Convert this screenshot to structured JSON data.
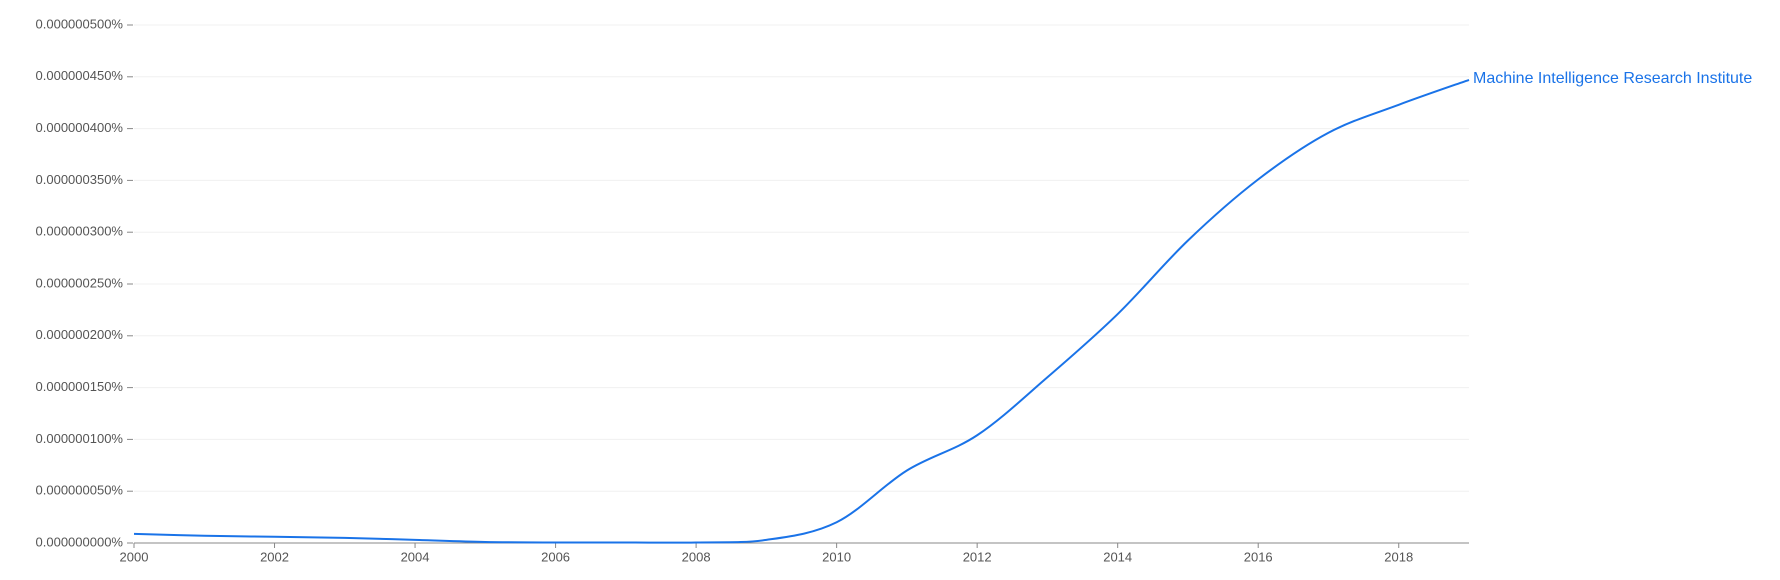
{
  "chart_data": {
    "type": "line",
    "x": [
      2000,
      2001,
      2002,
      2003,
      2004,
      2005,
      2006,
      2007,
      2008,
      2009,
      2010,
      2011,
      2012,
      2013,
      2014,
      2015,
      2016,
      2017,
      2018,
      2019
    ],
    "series": [
      {
        "name": "Machine Intelligence Research Institute",
        "color": "#1a73e8",
        "values": [
          8.8e-09,
          7e-09,
          6e-09,
          5e-09,
          3e-09,
          1e-09,
          5e-10,
          5e-10,
          5e-10,
          3e-09,
          2e-08,
          7e-08,
          1.04e-07,
          1.6e-07,
          2.21e-07,
          2.92e-07,
          3.51e-07,
          3.96e-07,
          4.23e-07,
          4.47e-07
        ]
      }
    ],
    "xlim": [
      2000,
      2019
    ],
    "xticks": [
      2000,
      2002,
      2004,
      2006,
      2008,
      2010,
      2012,
      2014,
      2016,
      2018
    ],
    "ylim": [
      0,
      5e-07
    ],
    "yticks": [
      {
        "value": 0,
        "label": "0.000000000%"
      },
      {
        "value": 5e-08,
        "label": "0.000000050%"
      },
      {
        "value": 1e-07,
        "label": "0.000000100%"
      },
      {
        "value": 1.5e-07,
        "label": "0.000000150%"
      },
      {
        "value": 2e-07,
        "label": "0.000000200%"
      },
      {
        "value": 2.5e-07,
        "label": "0.000000250%"
      },
      {
        "value": 3e-07,
        "label": "0.000000300%"
      },
      {
        "value": 3.5e-07,
        "label": "0.000000350%"
      },
      {
        "value": 4e-07,
        "label": "0.000000400%"
      },
      {
        "value": 4.5e-07,
        "label": "0.000000450%"
      },
      {
        "value": 5e-07,
        "label": "0.000000500%"
      }
    ],
    "grid": true
  }
}
